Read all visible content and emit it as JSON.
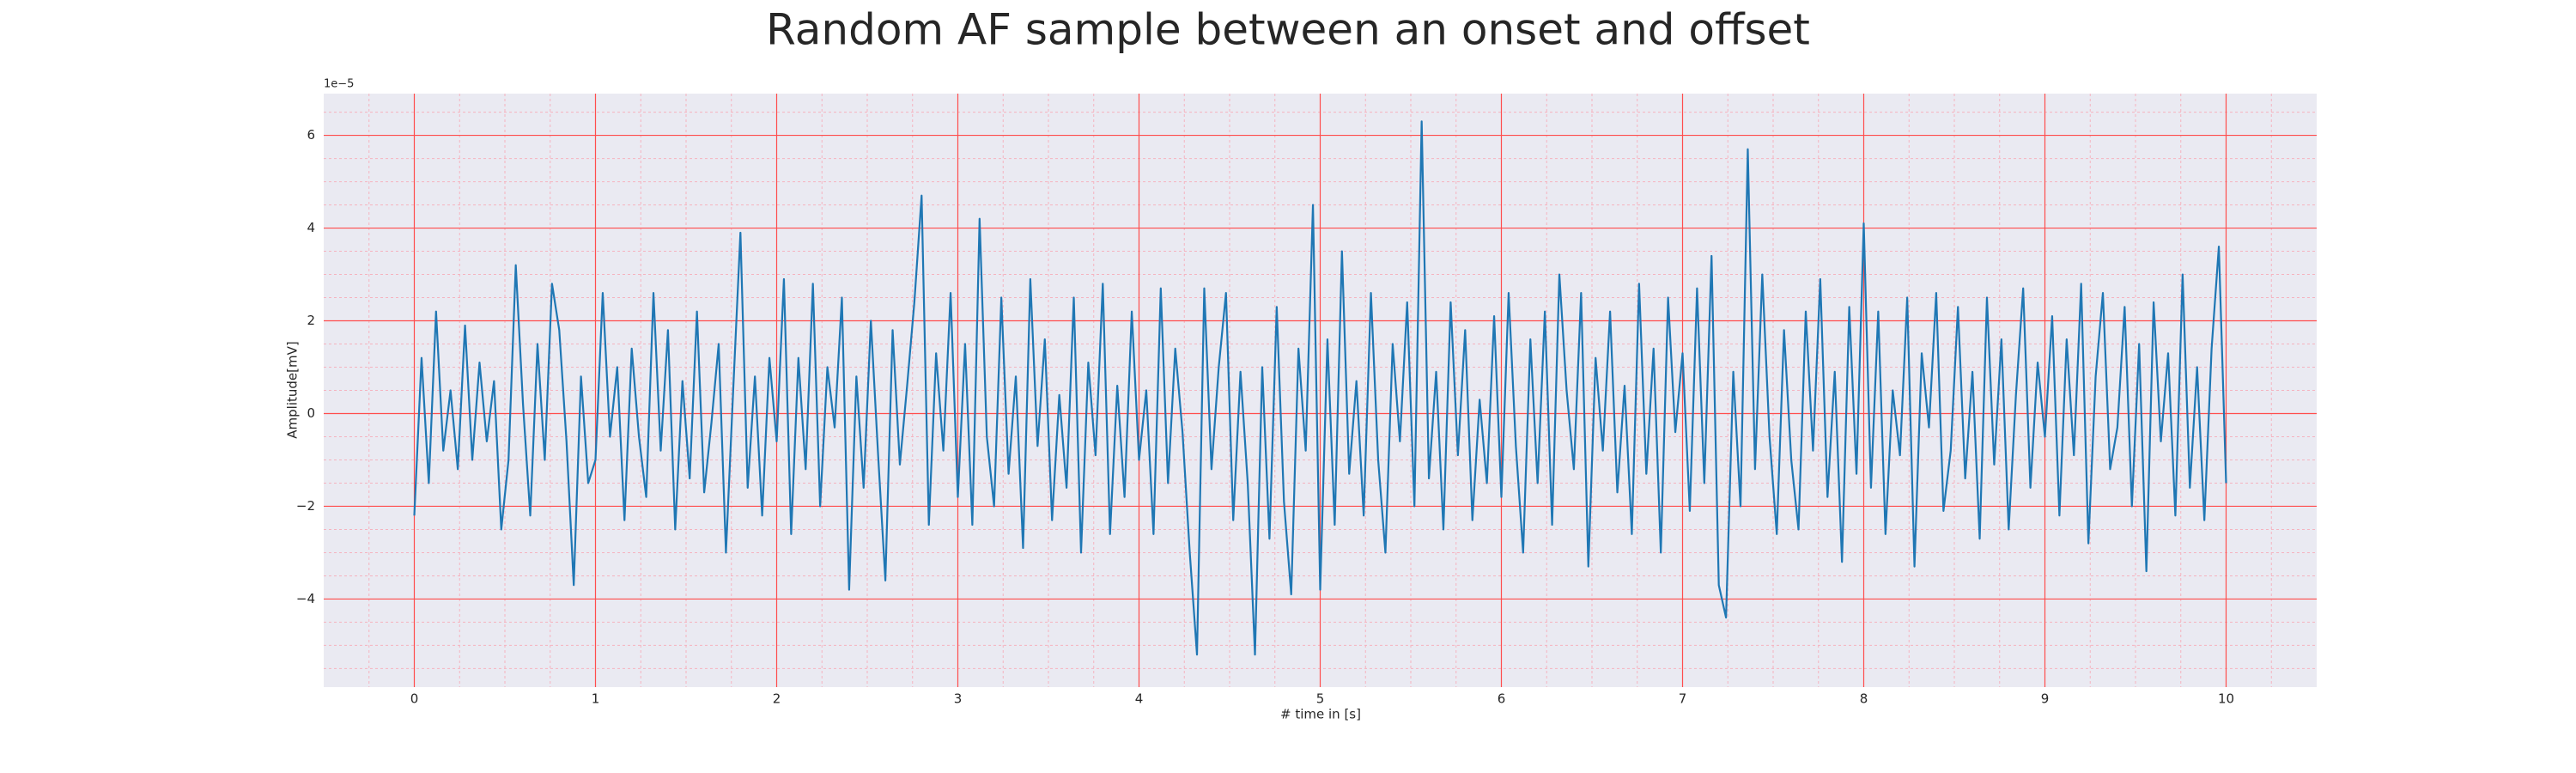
{
  "chart_data": {
    "type": "line",
    "title": "Random AF sample between an onset and offset",
    "xlabel": "# time in [s]",
    "ylabel": "Amplitude[mV]",
    "offset_label": "1e−5",
    "xlim": [
      -0.5,
      10.5
    ],
    "ylim": [
      -5.9,
      6.9
    ],
    "xticks": [
      0,
      1,
      2,
      3,
      4,
      5,
      6,
      7,
      8,
      9,
      10
    ],
    "yticks": [
      {
        "value": -4,
        "label": "−4"
      },
      {
        "value": -2,
        "label": "−2"
      },
      0,
      2,
      4,
      6
    ],
    "xminorticks": [
      -0.25,
      0.25,
      0.5,
      0.75,
      1.25,
      1.5,
      1.75,
      2.25,
      2.5,
      2.75,
      3.25,
      3.5,
      3.75,
      4.25,
      4.5,
      4.75,
      5.25,
      5.5,
      5.75,
      6.25,
      6.5,
      6.75,
      7.25,
      7.5,
      7.75,
      8.25,
      8.5,
      8.75,
      9.25,
      9.5,
      9.75,
      10.25
    ],
    "yminorticks": [
      -5.5,
      -5,
      -4.5,
      -3.5,
      -3,
      -2.5,
      -1.5,
      -1,
      -0.5,
      0.5,
      1,
      1.5,
      2.5,
      3,
      3.5,
      4.5,
      5,
      5.5,
      6.5
    ],
    "grid": true,
    "background": "#eaeaf2",
    "grid_color": "#ff4d4d",
    "minor_grid_color": "#f5b3bf",
    "x": [
      0,
      0.04,
      0.08,
      0.12,
      0.16,
      0.2,
      0.24,
      0.28,
      0.32,
      0.36,
      0.4,
      0.44,
      0.48,
      0.52,
      0.56,
      0.6,
      0.64,
      0.68,
      0.72,
      0.76,
      0.8,
      0.84,
      0.88,
      0.92,
      0.96,
      1,
      1.04,
      1.08,
      1.12,
      1.16,
      1.2,
      1.24,
      1.28,
      1.32,
      1.36,
      1.4,
      1.44,
      1.48,
      1.52,
      1.56,
      1.6,
      1.64,
      1.68,
      1.72,
      1.76,
      1.8,
      1.84,
      1.88,
      1.92,
      1.96,
      2,
      2.04,
      2.08,
      2.12,
      2.16,
      2.2,
      2.24,
      2.28,
      2.32,
      2.36,
      2.4,
      2.44,
      2.48,
      2.52,
      2.56,
      2.6,
      2.64,
      2.68,
      2.72,
      2.76,
      2.8,
      2.84,
      2.88,
      2.92,
      2.96,
      3,
      3.04,
      3.08,
      3.12,
      3.16,
      3.2,
      3.24,
      3.28,
      3.32,
      3.36,
      3.4,
      3.44,
      3.48,
      3.52,
      3.56,
      3.6,
      3.64,
      3.68,
      3.72,
      3.76,
      3.8,
      3.84,
      3.88,
      3.92,
      3.96,
      4,
      4.04,
      4.08,
      4.12,
      4.16,
      4.2,
      4.24,
      4.28,
      4.32,
      4.36,
      4.4,
      4.44,
      4.48,
      4.52,
      4.56,
      4.6,
      4.64,
      4.68,
      4.72,
      4.76,
      4.8,
      4.84,
      4.88,
      4.92,
      4.96,
      5,
      5.04,
      5.08,
      5.12,
      5.16,
      5.2,
      5.24,
      5.28,
      5.32,
      5.36,
      5.4,
      5.44,
      5.48,
      5.52,
      5.56,
      5.6,
      5.64,
      5.68,
      5.72,
      5.76,
      5.8,
      5.84,
      5.88,
      5.92,
      5.96,
      6,
      6.04,
      6.08,
      6.12,
      6.16,
      6.2,
      6.24,
      6.28,
      6.32,
      6.36,
      6.4,
      6.44,
      6.48,
      6.52,
      6.56,
      6.6,
      6.64,
      6.68,
      6.72,
      6.76,
      6.8,
      6.84,
      6.88,
      6.92,
      6.96,
      7,
      7.04,
      7.08,
      7.12,
      7.16,
      7.2,
      7.24,
      7.28,
      7.32,
      7.36,
      7.4,
      7.44,
      7.48,
      7.52,
      7.56,
      7.6,
      7.64,
      7.68,
      7.72,
      7.76,
      7.8,
      7.84,
      7.88,
      7.92,
      7.96,
      8,
      8.04,
      8.08,
      8.12,
      8.16,
      8.2,
      8.24,
      8.28,
      8.32,
      8.36,
      8.4,
      8.44,
      8.48,
      8.52,
      8.56,
      8.6,
      8.64,
      8.68,
      8.72,
      8.76,
      8.8,
      8.84,
      8.88,
      8.92,
      8.96,
      9,
      9.04,
      9.08,
      9.12,
      9.16,
      9.2,
      9.24,
      9.28,
      9.32,
      9.36,
      9.4,
      9.44,
      9.48,
      9.52,
      9.56,
      9.6,
      9.64,
      9.68,
      9.72,
      9.76,
      9.8,
      9.84,
      9.88,
      9.92,
      9.96,
      10
    ],
    "series": [
      {
        "color": "#1f77b4",
        "values": [
          -2.2,
          1.2,
          -1.5,
          2.2,
          -0.8,
          0.5,
          -1.2,
          1.9,
          -1.0,
          1.1,
          -0.6,
          0.7,
          -2.5,
          -1.0,
          3.2,
          0.2,
          -2.2,
          1.5,
          -1.0,
          2.8,
          1.8,
          -0.6,
          -3.7,
          0.8,
          -1.5,
          -1.0,
          2.6,
          -0.5,
          1.0,
          -2.3,
          1.4,
          -0.5,
          -1.8,
          2.6,
          -0.8,
          1.8,
          -2.5,
          0.7,
          -1.4,
          2.2,
          -1.7,
          -0.2,
          1.5,
          -3.0,
          0.5,
          3.9,
          -1.6,
          0.8,
          -2.2,
          1.2,
          -0.6,
          2.9,
          -2.6,
          1.2,
          -1.2,
          2.8,
          -2.0,
          1.0,
          -0.3,
          2.5,
          -3.8,
          0.8,
          -1.6,
          2.0,
          -0.9,
          -3.6,
          1.8,
          -1.1,
          0.6,
          2.4,
          4.7,
          -2.4,
          1.3,
          -0.8,
          2.6,
          -1.8,
          1.5,
          -2.4,
          4.2,
          -0.5,
          -2.0,
          2.5,
          -1.3,
          0.8,
          -2.9,
          2.9,
          -0.7,
          1.6,
          -2.3,
          0.4,
          -1.6,
          2.5,
          -3.0,
          1.1,
          -0.9,
          2.8,
          -2.6,
          0.6,
          -1.8,
          2.2,
          -1.0,
          0.5,
          -2.6,
          2.7,
          -1.5,
          1.4,
          -0.4,
          -3.0,
          -5.2,
          2.7,
          -1.2,
          1.0,
          2.6,
          -2.3,
          0.9,
          -1.5,
          -5.2,
          1.0,
          -2.7,
          2.3,
          -1.9,
          -3.9,
          1.4,
          -0.8,
          4.5,
          -3.8,
          1.6,
          -2.4,
          3.5,
          -1.3,
          0.7,
          -2.2,
          2.6,
          -1.0,
          -3.0,
          1.5,
          -0.6,
          2.4,
          -2.0,
          6.3,
          -1.4,
          0.9,
          -2.5,
          2.4,
          -0.9,
          1.8,
          -2.3,
          0.3,
          -1.5,
          2.1,
          -1.8,
          2.6,
          -0.7,
          -3.0,
          1.6,
          -1.5,
          2.2,
          -2.4,
          3.0,
          0.5,
          -1.2,
          2.6,
          -3.3,
          1.2,
          -0.8,
          2.2,
          -1.7,
          0.6,
          -2.6,
          2.8,
          -1.3,
          1.4,
          -3.0,
          2.5,
          -0.4,
          1.3,
          -2.1,
          2.7,
          -1.5,
          3.4,
          -3.7,
          -4.4,
          0.9,
          -2.0,
          5.7,
          -1.2,
          3.0,
          -0.5,
          -2.6,
          1.8,
          -1.0,
          -2.5,
          2.2,
          -0.8,
          2.9,
          -1.8,
          0.9,
          -3.2,
          2.3,
          -1.3,
          4.1,
          -1.6,
          2.2,
          -2.6,
          0.5,
          -0.9,
          2.5,
          -3.3,
          1.3,
          -0.3,
          2.6,
          -2.1,
          -0.8,
          2.3,
          -1.4,
          0.9,
          -2.7,
          2.5,
          -1.1,
          1.6,
          -2.5,
          0.4,
          2.7,
          -1.6,
          1.1,
          -0.5,
          2.1,
          -2.2,
          1.6,
          -0.9,
          2.8,
          -2.8,
          0.8,
          2.6,
          -1.2,
          -0.3,
          2.3,
          -2.0,
          1.5,
          -3.4,
          2.4,
          -0.6,
          1.3,
          -2.2,
          3.0,
          -1.6,
          1.0,
          -2.3,
          1.4,
          3.6,
          -1.5
        ]
      }
    ]
  }
}
